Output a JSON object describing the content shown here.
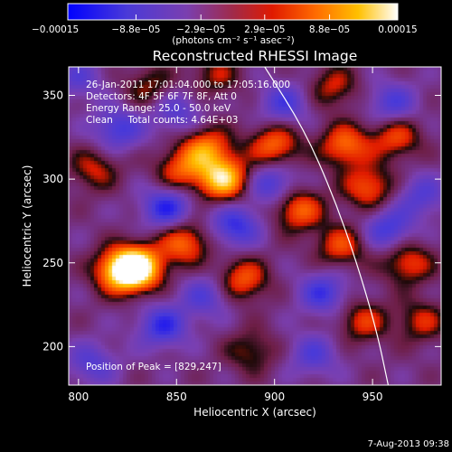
{
  "chart_data": {
    "type": "heatmap",
    "title": "Reconstructed RHESSI Image",
    "xlabel": "Heliocentric X (arcsec)",
    "ylabel": "Heliocentric Y (arcsec)",
    "xlim": [
      795,
      985
    ],
    "ylim": [
      177,
      367
    ],
    "x_ticks": [
      800,
      850,
      900,
      950
    ],
    "y_ticks": [
      200,
      250,
      300,
      350
    ],
    "colorbar": {
      "range": [
        -0.00015,
        0.00015
      ],
      "tick_values": [
        -0.00015,
        -8.8e-05,
        -2.9e-05,
        2.9e-05,
        8.8e-05,
        0.00015
      ],
      "tick_labels": [
        "−0.00015",
        "−8.8e−05",
        "−2.9e−05",
        "2.9e−05",
        "8.8e−05",
        "0.00015"
      ],
      "units": "(photons cm⁻² s⁻¹ asec⁻²)"
    },
    "annotations": [
      "26-Jan-2011 17:01:04.000 to 17:05:16.000",
      "Detectors: 4F 5F 6F 7F 8F, Att 0",
      "Energy Range: 25.0 - 50.0 keV",
      "Clean     Total counts: 4.64E+03"
    ],
    "peak_label": "Position of Peak = [829,247]",
    "peak": [
      829,
      247
    ],
    "limb_curve": [
      [
        895,
        367
      ],
      [
        915,
        330
      ],
      [
        930,
        290
      ],
      [
        942,
        250
      ],
      [
        952,
        210
      ],
      [
        958,
        177
      ]
    ],
    "sources": [
      {
        "x": 830,
        "y": 247,
        "v": 1.0
      },
      {
        "x": 821,
        "y": 245,
        "v": 0.7
      },
      {
        "x": 874,
        "y": 300,
        "v": 0.85
      },
      {
        "x": 865,
        "y": 318,
        "v": 0.6
      },
      {
        "x": 900,
        "y": 320,
        "v": 0.55
      },
      {
        "x": 854,
        "y": 262,
        "v": 0.55
      },
      {
        "x": 884,
        "y": 240,
        "v": 0.5
      },
      {
        "x": 912,
        "y": 282,
        "v": 0.55
      },
      {
        "x": 852,
        "y": 305,
        "v": 0.45
      },
      {
        "x": 936,
        "y": 320,
        "v": 0.55
      },
      {
        "x": 948,
        "y": 295,
        "v": 0.5
      },
      {
        "x": 962,
        "y": 325,
        "v": 0.45
      },
      {
        "x": 934,
        "y": 260,
        "v": 0.45
      },
      {
        "x": 968,
        "y": 250,
        "v": 0.45
      },
      {
        "x": 945,
        "y": 215,
        "v": 0.4
      },
      {
        "x": 975,
        "y": 215,
        "v": 0.35
      },
      {
        "x": 808,
        "y": 306,
        "v": 0.35
      },
      {
        "x": 888,
        "y": 197,
        "v": 0.3
      },
      {
        "x": 836,
        "y": 355,
        "v": 0.3
      },
      {
        "x": 930,
        "y": 355,
        "v": 0.35
      },
      {
        "x": 870,
        "y": 362,
        "v": 0.3
      },
      {
        "x": 845,
        "y": 283,
        "v": -0.55
      },
      {
        "x": 880,
        "y": 272,
        "v": -0.5
      },
      {
        "x": 899,
        "y": 297,
        "v": -0.45
      },
      {
        "x": 843,
        "y": 212,
        "v": -0.5
      },
      {
        "x": 820,
        "y": 330,
        "v": -0.45
      },
      {
        "x": 905,
        "y": 345,
        "v": -0.4
      },
      {
        "x": 925,
        "y": 232,
        "v": -0.45
      },
      {
        "x": 958,
        "y": 270,
        "v": -0.45
      },
      {
        "x": 960,
        "y": 345,
        "v": -0.4
      },
      {
        "x": 865,
        "y": 230,
        "v": -0.35
      },
      {
        "x": 920,
        "y": 195,
        "v": -0.35
      },
      {
        "x": 807,
        "y": 190,
        "v": -0.35
      },
      {
        "x": 850,
        "y": 340,
        "v": -0.35
      },
      {
        "x": 975,
        "y": 290,
        "v": -0.35
      },
      {
        "x": 800,
        "y": 360,
        "v": -0.3
      }
    ]
  },
  "footer": {
    "timestamp": "7-Aug-2013 09:38"
  }
}
